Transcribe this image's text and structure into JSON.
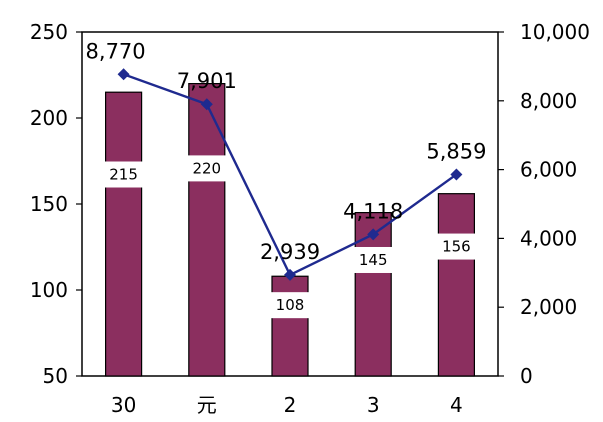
{
  "chart_data": {
    "type": "bar+line",
    "categories": [
      "30",
      "元",
      "2",
      "3",
      "4"
    ],
    "series": [
      {
        "axis": "left",
        "type": "bar",
        "values": [
          215,
          220,
          108,
          145,
          156
        ],
        "color": "#8b2f5f"
      },
      {
        "axis": "right",
        "type": "line",
        "values": [
          8770,
          7901,
          2939,
          4118,
          5859
        ],
        "color": "#1f2a8f"
      }
    ],
    "y_left": {
      "min": 50,
      "max": 250,
      "ticks": [
        50,
        100,
        150,
        200,
        250
      ]
    },
    "y_right": {
      "min": 0,
      "max": 10000,
      "ticks": [
        "0",
        "2,000",
        "4,000",
        "6,000",
        "8,000",
        "10,000"
      ]
    },
    "bar_labels": [
      "215",
      "220",
      "108",
      "145",
      "156"
    ],
    "line_labels": [
      "8,770",
      "7,901",
      "2,939",
      "4,118",
      "5,859"
    ],
    "grid": false,
    "legend": "none"
  }
}
